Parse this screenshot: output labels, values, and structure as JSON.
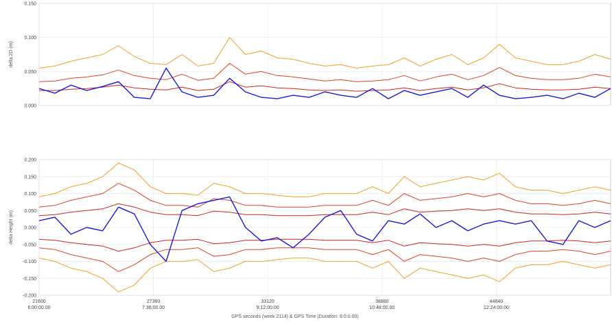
{
  "figure": {
    "xlabel": "GPS seconds (week 2114) & GPS Time (Duration: 8:0:0.00)",
    "x_ticks": [
      {
        "seconds": 21600,
        "seconds_label": "21600",
        "time_label": "6:00:00.00"
      },
      {
        "seconds": 27360,
        "seconds_label": "27360",
        "time_label": "7:36:00.00"
      },
      {
        "seconds": 33120,
        "seconds_label": "33120",
        "time_label": "9:12:00.00"
      },
      {
        "seconds": 38880,
        "seconds_label": "38880",
        "time_label": "10:48:00.00"
      },
      {
        "seconds": 44640,
        "seconds_label": "44640",
        "time_label": "12:24:00.00"
      }
    ]
  },
  "chart_data": [
    {
      "type": "line",
      "ylabel": "delta 2D (m)",
      "xlim": [
        21600,
        50400
      ],
      "ylim": [
        0,
        0.15
      ],
      "yticks": [
        "0.150",
        "0.100",
        "0.050",
        "0.000"
      ],
      "ytick_values": [
        0.15,
        0.1,
        0.05,
        0.0
      ],
      "grid": true,
      "series": [
        {
          "role": "outer-bound",
          "color": "#f0a020",
          "x": [
            21600,
            22400,
            23200,
            24000,
            24800,
            25600,
            26400,
            27200,
            28000,
            28800,
            29600,
            30400,
            31200,
            32000,
            32800,
            33600,
            34400,
            35200,
            36000,
            36800,
            37600,
            38400,
            39200,
            40000,
            40800,
            41600,
            42400,
            43200,
            44000,
            44800,
            45600,
            46400,
            47200,
            48000,
            48800,
            49600,
            50400
          ],
          "y": [
            0.055,
            0.058,
            0.065,
            0.07,
            0.075,
            0.088,
            0.072,
            0.062,
            0.06,
            0.075,
            0.058,
            0.062,
            0.1,
            0.075,
            0.08,
            0.07,
            0.068,
            0.062,
            0.058,
            0.06,
            0.055,
            0.058,
            0.06,
            0.07,
            0.058,
            0.068,
            0.075,
            0.06,
            0.07,
            0.09,
            0.07,
            0.065,
            0.06,
            0.06,
            0.065,
            0.075,
            0.068
          ]
        },
        {
          "role": "inner-bound",
          "color": "#e04020",
          "x": [
            21600,
            22400,
            23200,
            24000,
            24800,
            25600,
            26400,
            27200,
            28000,
            28800,
            29600,
            30400,
            31200,
            32000,
            32800,
            33600,
            34400,
            35200,
            36000,
            36800,
            37600,
            38400,
            39200,
            40000,
            40800,
            41600,
            42400,
            43200,
            44000,
            44800,
            45600,
            46400,
            47200,
            48000,
            48800,
            49600,
            50400
          ],
          "y": [
            0.035,
            0.036,
            0.04,
            0.042,
            0.045,
            0.052,
            0.044,
            0.04,
            0.038,
            0.046,
            0.037,
            0.04,
            0.062,
            0.046,
            0.05,
            0.044,
            0.042,
            0.039,
            0.036,
            0.038,
            0.035,
            0.036,
            0.038,
            0.044,
            0.036,
            0.042,
            0.046,
            0.038,
            0.044,
            0.056,
            0.044,
            0.04,
            0.038,
            0.038,
            0.04,
            0.046,
            0.042
          ]
        },
        {
          "role": "mean-bound",
          "color": "#d02020",
          "x": [
            21600,
            22400,
            23200,
            24000,
            24800,
            25600,
            26400,
            27200,
            28000,
            28800,
            29600,
            30400,
            31200,
            32000,
            32800,
            33600,
            34400,
            35200,
            36000,
            36800,
            37600,
            38400,
            39200,
            40000,
            40800,
            41600,
            42400,
            43200,
            44000,
            44800,
            45600,
            46400,
            47200,
            48000,
            48800,
            49600,
            50400
          ],
          "y": [
            0.022,
            0.022,
            0.024,
            0.025,
            0.027,
            0.03,
            0.026,
            0.024,
            0.023,
            0.027,
            0.022,
            0.024,
            0.035,
            0.027,
            0.029,
            0.026,
            0.025,
            0.023,
            0.022,
            0.023,
            0.021,
            0.022,
            0.023,
            0.026,
            0.022,
            0.025,
            0.027,
            0.023,
            0.026,
            0.032,
            0.026,
            0.024,
            0.023,
            0.023,
            0.024,
            0.027,
            0.025
          ]
        },
        {
          "role": "delta",
          "color": "#1818d8",
          "x": [
            21600,
            22400,
            23200,
            24000,
            24800,
            25600,
            26400,
            27200,
            28000,
            28800,
            29600,
            30400,
            31200,
            32000,
            32800,
            33600,
            34400,
            35200,
            36000,
            36800,
            37600,
            38400,
            39200,
            40000,
            40800,
            41600,
            42400,
            43200,
            44000,
            44800,
            45600,
            46400,
            47200,
            48000,
            48800,
            49600,
            50400
          ],
          "y": [
            0.025,
            0.018,
            0.03,
            0.022,
            0.028,
            0.035,
            0.012,
            0.01,
            0.055,
            0.02,
            0.012,
            0.015,
            0.04,
            0.02,
            0.012,
            0.01,
            0.015,
            0.012,
            0.02,
            0.015,
            0.012,
            0.025,
            0.01,
            0.022,
            0.015,
            0.02,
            0.025,
            0.012,
            0.03,
            0.015,
            0.01,
            0.012,
            0.015,
            0.01,
            0.018,
            0.012,
            0.025
          ]
        }
      ]
    },
    {
      "type": "line",
      "ylabel": "delta Height (m)",
      "xlim": [
        21600,
        50400
      ],
      "ylim": [
        -0.2,
        0.2
      ],
      "yticks": [
        "0.200",
        "0.150",
        "0.100",
        "0.050",
        "0.000",
        "-0.050",
        "-0.100",
        "-0.150",
        "-0.200"
      ],
      "ytick_values": [
        0.2,
        0.15,
        0.1,
        0.05,
        0.0,
        -0.05,
        -0.1,
        -0.15,
        -0.2
      ],
      "grid": true,
      "series": [
        {
          "role": "outer-bound-upper",
          "color": "#f0a020",
          "x": [
            21600,
            22400,
            23200,
            24000,
            24800,
            25600,
            26400,
            27200,
            28000,
            28800,
            29600,
            30400,
            31200,
            32000,
            32800,
            33600,
            34400,
            35200,
            36000,
            36800,
            37600,
            38400,
            39200,
            40000,
            40800,
            41600,
            42400,
            43200,
            44000,
            44800,
            45600,
            46400,
            47200,
            48000,
            48800,
            49600,
            50400
          ],
          "y": [
            0.09,
            0.1,
            0.12,
            0.13,
            0.15,
            0.19,
            0.17,
            0.12,
            0.1,
            0.1,
            0.095,
            0.13,
            0.12,
            0.1,
            0.1,
            0.095,
            0.09,
            0.09,
            0.1,
            0.1,
            0.1,
            0.12,
            0.1,
            0.15,
            0.12,
            0.13,
            0.14,
            0.15,
            0.14,
            0.16,
            0.12,
            0.11,
            0.11,
            0.1,
            0.11,
            0.12,
            0.11
          ]
        },
        {
          "role": "inner-bound-upper",
          "color": "#e04020",
          "x": [
            21600,
            22400,
            23200,
            24000,
            24800,
            25600,
            26400,
            27200,
            28000,
            28800,
            29600,
            30400,
            31200,
            32000,
            32800,
            33600,
            34400,
            35200,
            36000,
            36800,
            37600,
            38400,
            39200,
            40000,
            40800,
            41600,
            42400,
            43200,
            44000,
            44800,
            45600,
            46400,
            47200,
            48000,
            48800,
            49600,
            50400
          ],
          "y": [
            0.06,
            0.065,
            0.08,
            0.09,
            0.1,
            0.13,
            0.11,
            0.08,
            0.065,
            0.065,
            0.06,
            0.085,
            0.08,
            0.065,
            0.065,
            0.06,
            0.06,
            0.06,
            0.065,
            0.065,
            0.065,
            0.08,
            0.065,
            0.1,
            0.08,
            0.085,
            0.09,
            0.1,
            0.09,
            0.1,
            0.08,
            0.07,
            0.07,
            0.065,
            0.07,
            0.08,
            0.07
          ]
        },
        {
          "role": "mean-bound-upper",
          "color": "#d02020",
          "x": [
            21600,
            22400,
            23200,
            24000,
            24800,
            25600,
            26400,
            27200,
            28000,
            28800,
            29600,
            30400,
            31200,
            32000,
            32800,
            33600,
            34400,
            35200,
            36000,
            36800,
            37600,
            38400,
            39200,
            40000,
            40800,
            41600,
            42400,
            43200,
            44000,
            44800,
            45600,
            46400,
            47200,
            48000,
            48800,
            49600,
            50400
          ],
          "y": [
            0.035,
            0.038,
            0.045,
            0.05,
            0.055,
            0.07,
            0.06,
            0.045,
            0.038,
            0.038,
            0.035,
            0.048,
            0.045,
            0.038,
            0.038,
            0.035,
            0.035,
            0.035,
            0.038,
            0.038,
            0.038,
            0.045,
            0.038,
            0.055,
            0.045,
            0.048,
            0.05,
            0.055,
            0.05,
            0.055,
            0.045,
            0.04,
            0.04,
            0.038,
            0.04,
            0.045,
            0.04
          ]
        },
        {
          "role": "mean-bound-lower",
          "color": "#d02020",
          "x": [
            21600,
            22400,
            23200,
            24000,
            24800,
            25600,
            26400,
            27200,
            28000,
            28800,
            29600,
            30400,
            31200,
            32000,
            32800,
            33600,
            34400,
            35200,
            36000,
            36800,
            37600,
            38400,
            39200,
            40000,
            40800,
            41600,
            42400,
            43200,
            44000,
            44800,
            45600,
            46400,
            47200,
            48000,
            48800,
            49600,
            50400
          ],
          "y": [
            -0.035,
            -0.038,
            -0.045,
            -0.05,
            -0.055,
            -0.07,
            -0.06,
            -0.045,
            -0.038,
            -0.038,
            -0.035,
            -0.048,
            -0.045,
            -0.038,
            -0.038,
            -0.035,
            -0.035,
            -0.035,
            -0.038,
            -0.038,
            -0.038,
            -0.045,
            -0.038,
            -0.055,
            -0.045,
            -0.048,
            -0.05,
            -0.055,
            -0.05,
            -0.055,
            -0.045,
            -0.04,
            -0.04,
            -0.038,
            -0.04,
            -0.045,
            -0.04
          ]
        },
        {
          "role": "inner-bound-lower",
          "color": "#e04020",
          "x": [
            21600,
            22400,
            23200,
            24000,
            24800,
            25600,
            26400,
            27200,
            28000,
            28800,
            29600,
            30400,
            31200,
            32000,
            32800,
            33600,
            34400,
            35200,
            36000,
            36800,
            37600,
            38400,
            39200,
            40000,
            40800,
            41600,
            42400,
            43200,
            44000,
            44800,
            45600,
            46400,
            47200,
            48000,
            48800,
            49600,
            50400
          ],
          "y": [
            -0.06,
            -0.065,
            -0.08,
            -0.09,
            -0.1,
            -0.13,
            -0.11,
            -0.08,
            -0.065,
            -0.065,
            -0.06,
            -0.085,
            -0.08,
            -0.065,
            -0.065,
            -0.06,
            -0.06,
            -0.06,
            -0.065,
            -0.065,
            -0.065,
            -0.08,
            -0.065,
            -0.1,
            -0.08,
            -0.085,
            -0.09,
            -0.1,
            -0.09,
            -0.1,
            -0.08,
            -0.07,
            -0.07,
            -0.065,
            -0.07,
            -0.08,
            -0.07
          ]
        },
        {
          "role": "outer-bound-lower",
          "color": "#f0a020",
          "x": [
            21600,
            22400,
            23200,
            24000,
            24800,
            25600,
            26400,
            27200,
            28000,
            28800,
            29600,
            30400,
            31200,
            32000,
            32800,
            33600,
            34400,
            35200,
            36000,
            36800,
            37600,
            38400,
            39200,
            40000,
            40800,
            41600,
            42400,
            43200,
            44000,
            44800,
            45600,
            46400,
            47200,
            48000,
            48800,
            49600,
            50400
          ],
          "y": [
            -0.09,
            -0.1,
            -0.12,
            -0.13,
            -0.15,
            -0.19,
            -0.17,
            -0.12,
            -0.1,
            -0.1,
            -0.095,
            -0.13,
            -0.12,
            -0.1,
            -0.1,
            -0.095,
            -0.09,
            -0.09,
            -0.1,
            -0.1,
            -0.1,
            -0.12,
            -0.1,
            -0.15,
            -0.12,
            -0.13,
            -0.14,
            -0.15,
            -0.14,
            -0.16,
            -0.12,
            -0.11,
            -0.11,
            -0.1,
            -0.11,
            -0.12,
            -0.11
          ]
        },
        {
          "role": "delta",
          "color": "#1818d8",
          "x": [
            21600,
            22400,
            23200,
            24000,
            24800,
            25600,
            26400,
            27200,
            28000,
            28800,
            29600,
            30400,
            31200,
            32000,
            32800,
            33600,
            34400,
            35200,
            36000,
            36800,
            37600,
            38400,
            39200,
            40000,
            40800,
            41600,
            42400,
            43200,
            44000,
            44800,
            45600,
            46400,
            47200,
            48000,
            48800,
            49600,
            50400
          ],
          "y": [
            0.02,
            0.03,
            -0.02,
            0.0,
            -0.01,
            0.06,
            0.04,
            -0.05,
            -0.1,
            0.05,
            0.07,
            0.08,
            0.09,
            0.0,
            -0.04,
            -0.03,
            -0.06,
            -0.02,
            0.03,
            0.05,
            -0.02,
            -0.04,
            0.02,
            0.01,
            0.04,
            0.0,
            0.02,
            -0.01,
            0.01,
            0.02,
            0.01,
            0.02,
            -0.04,
            -0.05,
            0.02,
            0.0,
            0.02
          ]
        }
      ]
    }
  ]
}
